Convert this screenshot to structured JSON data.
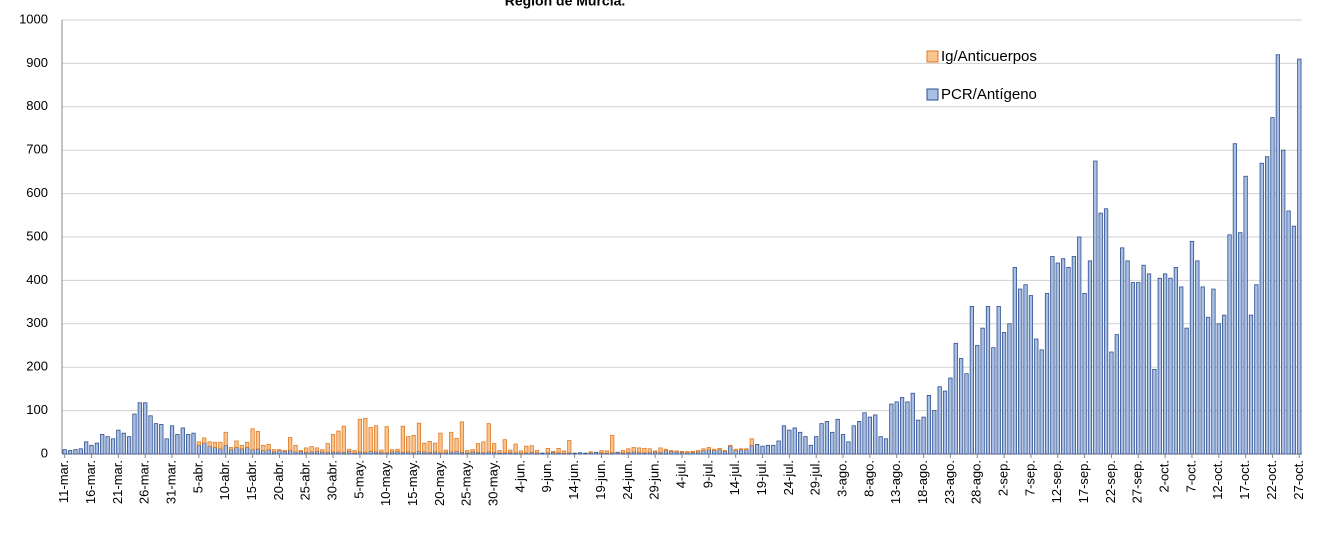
{
  "chart_data": {
    "type": "bar",
    "stacked": true,
    "title": "Región de Murcia.",
    "categories": [
      "11-mar.",
      null,
      null,
      null,
      null,
      "16-mar.",
      null,
      null,
      null,
      null,
      "21-mar.",
      null,
      null,
      null,
      null,
      "26-mar.",
      null,
      null,
      null,
      null,
      "31-mar.",
      null,
      null,
      null,
      null,
      "5-abr.",
      null,
      null,
      null,
      null,
      "10-abr.",
      null,
      null,
      null,
      null,
      "15-abr.",
      null,
      null,
      null,
      null,
      "20-abr.",
      null,
      null,
      null,
      null,
      "25-abr.",
      null,
      null,
      null,
      null,
      "30-abr.",
      null,
      null,
      null,
      null,
      "5-may.",
      null,
      null,
      null,
      null,
      "10-may.",
      null,
      null,
      null,
      null,
      "15-may.",
      null,
      null,
      null,
      null,
      "20-may.",
      null,
      null,
      null,
      null,
      "25-may.",
      null,
      null,
      null,
      null,
      "30-may.",
      null,
      null,
      null,
      null,
      "4-jun.",
      null,
      null,
      null,
      null,
      "9-jun.",
      null,
      null,
      null,
      null,
      "14-jun.",
      null,
      null,
      null,
      null,
      "19-jun.",
      null,
      null,
      null,
      null,
      "24-jun.",
      null,
      null,
      null,
      null,
      "29-jun.",
      null,
      null,
      null,
      null,
      "4-jul.",
      null,
      null,
      null,
      null,
      "9-jul.",
      null,
      null,
      null,
      null,
      "14-jul.",
      null,
      null,
      null,
      null,
      "19-jul.",
      null,
      null,
      null,
      null,
      "24-jul.",
      null,
      null,
      null,
      null,
      "29-jul.",
      null,
      null,
      null,
      null,
      "3-ago.",
      null,
      null,
      null,
      null,
      "8-ago.",
      null,
      null,
      null,
      null,
      "13-ago.",
      null,
      null,
      null,
      null,
      "18-ago.",
      null,
      null,
      null,
      null,
      "23-ago.",
      null,
      null,
      null,
      null,
      "28-ago.",
      null,
      null,
      null,
      null,
      "2-sep.",
      null,
      null,
      null,
      null,
      "7-sep.",
      null,
      null,
      null,
      null,
      "12-sep.",
      null,
      null,
      null,
      null,
      "17-sep.",
      null,
      null,
      null,
      null,
      "22-sep.",
      null,
      null,
      null,
      null,
      "27-sep.",
      null,
      null,
      null,
      null,
      "2-oct.",
      null,
      null,
      null,
      null,
      "7-oct.",
      null,
      null,
      null,
      null,
      "12-oct.",
      null,
      null,
      null,
      null,
      "17-oct.",
      null,
      null,
      null,
      null,
      "22-oct.",
      null,
      null,
      null,
      null,
      "27-oct."
    ],
    "series": [
      {
        "name": "PCR/Antígeno",
        "color": "#a9bfe3",
        "stroke": "#2f4f8f",
        "values": [
          10,
          8,
          10,
          12,
          28,
          20,
          25,
          45,
          40,
          35,
          55,
          48,
          40,
          92,
          118,
          118,
          88,
          70,
          68,
          35,
          65,
          45,
          60,
          45,
          48,
          20,
          25,
          18,
          15,
          12,
          20,
          10,
          15,
          12,
          15,
          10,
          12,
          8,
          10,
          5,
          8,
          6,
          8,
          5,
          6,
          4,
          5,
          6,
          5,
          4,
          5,
          5,
          4,
          6,
          3,
          5,
          4,
          6,
          5,
          4,
          3,
          5,
          6,
          4,
          5,
          3,
          6,
          5,
          4,
          5,
          3,
          4,
          5,
          6,
          4,
          3,
          5,
          4,
          3,
          5,
          4,
          3,
          3,
          4,
          3,
          2,
          3,
          4,
          3,
          2,
          3,
          4,
          3,
          2,
          3,
          2,
          3,
          2,
          3,
          4,
          3,
          2,
          3,
          4,
          3,
          4,
          5,
          4,
          3,
          4,
          5,
          4,
          8,
          6,
          5,
          4,
          3,
          4,
          5,
          8,
          10,
          8,
          10,
          6,
          18,
          8,
          10,
          10,
          20,
          22,
          18,
          20,
          20,
          30,
          65,
          55,
          60,
          50,
          40,
          20,
          40,
          70,
          75,
          50,
          80,
          45,
          28,
          65,
          75,
          95,
          85,
          90,
          40,
          35,
          115,
          120,
          130,
          120,
          140,
          78,
          85,
          135,
          100,
          155,
          145,
          175,
          255,
          220,
          185,
          340,
          250,
          290,
          340,
          245,
          340,
          280,
          300,
          430,
          380,
          390,
          365,
          265,
          240,
          370,
          455,
          440,
          450,
          430,
          455,
          500,
          370,
          445,
          675,
          555,
          565,
          235,
          275,
          475,
          445,
          395,
          395,
          435,
          415,
          195,
          405,
          415,
          405,
          430,
          385,
          290,
          490,
          445,
          385,
          315,
          380,
          300,
          320,
          505,
          715,
          510,
          640,
          320,
          390,
          670,
          685,
          775,
          920,
          700,
          560,
          525,
          910
        ]
      },
      {
        "name": "Ig/Anticuerpos",
        "color": "#f9c48e",
        "stroke": "#e07a22",
        "values": [
          0,
          0,
          0,
          0,
          0,
          0,
          0,
          0,
          0,
          0,
          0,
          0,
          0,
          0,
          0,
          0,
          0,
          0,
          0,
          0,
          0,
          0,
          0,
          0,
          0,
          8,
          12,
          10,
          12,
          15,
          30,
          5,
          15,
          8,
          12,
          48,
          40,
          12,
          12,
          5,
          2,
          2,
          30,
          15,
          2,
          10,
          12,
          8,
          5,
          20,
          40,
          48,
          60,
          5,
          5,
          75,
          78,
          55,
          60,
          5,
          60,
          5,
          5,
          60,
          35,
          40,
          65,
          20,
          25,
          20,
          45,
          5,
          45,
          30,
          70,
          5,
          5,
          20,
          25,
          65,
          20,
          5,
          30,
          5,
          20,
          5,
          15,
          15,
          5,
          0,
          10,
          2,
          10,
          5,
          28,
          0,
          0,
          0,
          2,
          0,
          5,
          5,
          40,
          0,
          5,
          8,
          10,
          10,
          10,
          8,
          2,
          10,
          3,
          2,
          2,
          2,
          3,
          2,
          3,
          4,
          5,
          3,
          3,
          2,
          2,
          3,
          2,
          2,
          15,
          0,
          0,
          0,
          0,
          0,
          0,
          0,
          0,
          0,
          0,
          0,
          0,
          0,
          0,
          0,
          0,
          0,
          0,
          0,
          0,
          0,
          0,
          0,
          0,
          0,
          0,
          0,
          0,
          0,
          0,
          0,
          0,
          0,
          0,
          0,
          0,
          0,
          0,
          0,
          0,
          0,
          0,
          0,
          0,
          0,
          0,
          0,
          0,
          0,
          0,
          0,
          0,
          0,
          0,
          0,
          0,
          0,
          0,
          0,
          0,
          0,
          0,
          0,
          0,
          0,
          0,
          0,
          0,
          0,
          0,
          0,
          0,
          0,
          0,
          0,
          0,
          0,
          0,
          0,
          0,
          0,
          0,
          0,
          0,
          0,
          0,
          0,
          0,
          0,
          0,
          0,
          0,
          0,
          0,
          0,
          0,
          0,
          0,
          0,
          0,
          0,
          0
        ]
      }
    ],
    "ylim": [
      0,
      1000
    ],
    "yticks": [
      0,
      100,
      200,
      300,
      400,
      500,
      600,
      700,
      800,
      900,
      1000
    ],
    "grid": true,
    "legend": "upper right"
  }
}
